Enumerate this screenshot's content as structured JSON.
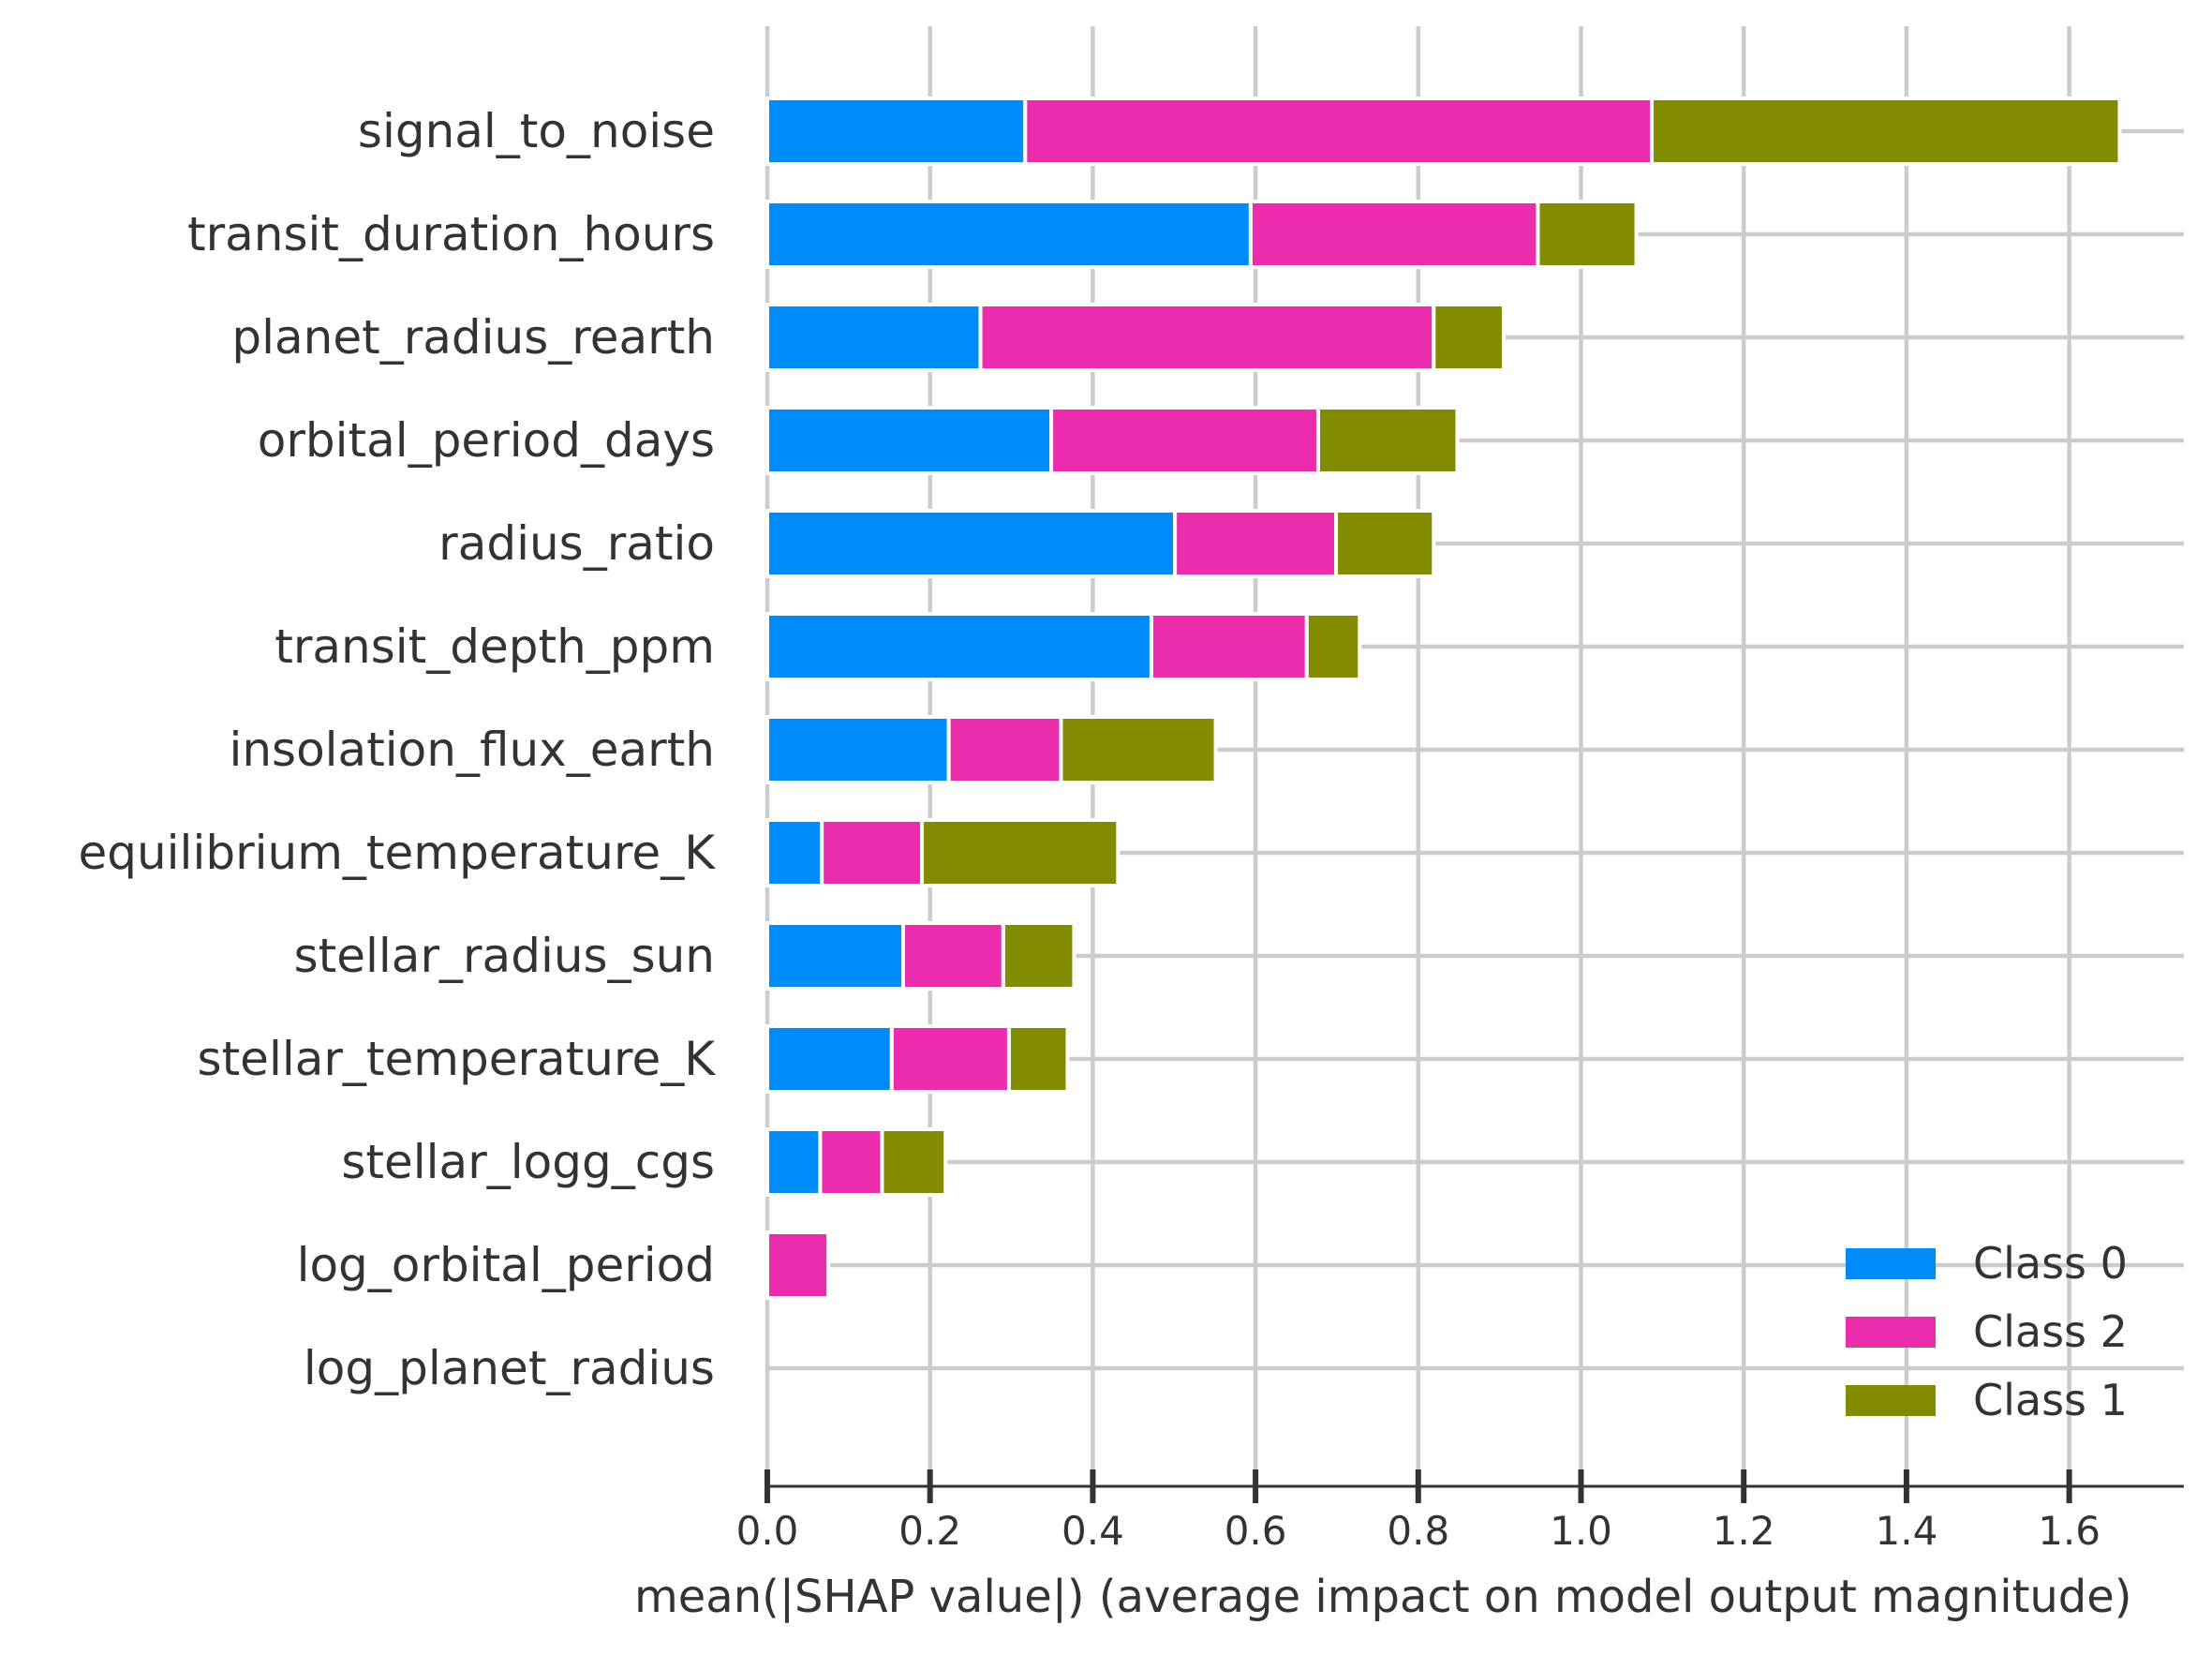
{
  "chart_data": {
    "type": "bar",
    "orientation": "horizontal",
    "stacked": true,
    "title": "",
    "xlabel": "mean(|SHAP value|) (average impact on model output magnitude)",
    "ylabel": "",
    "xlim": [
      0,
      1.75
    ],
    "xticks": [
      "0.0",
      "0.2",
      "0.4",
      "0.6",
      "0.8",
      "1.0",
      "1.2",
      "1.4",
      "1.6"
    ],
    "grid": true,
    "legend_position": "bottom-right",
    "categories": [
      "signal_to_noise",
      "transit_duration_hours",
      "planet_radius_rearth",
      "orbital_period_days",
      "radius_ratio",
      "transit_depth_ppm",
      "insolation_flux_earth",
      "equilibrium_temperature_K",
      "stellar_radius_sun",
      "stellar_temperature_K",
      "stellar_logg_cgs",
      "log_orbital_period",
      "log_planet_radius"
    ],
    "series": [
      {
        "name": "Class 0",
        "color": "#008bfb",
        "values": [
          0.317,
          0.594,
          0.262,
          0.349,
          0.501,
          0.472,
          0.223,
          0.067,
          0.167,
          0.153,
          0.065,
          0.0,
          0.0
        ]
      },
      {
        "name": "Class 2",
        "color": "#eb2cac",
        "values": [
          0.77,
          0.353,
          0.557,
          0.328,
          0.198,
          0.191,
          0.138,
          0.123,
          0.123,
          0.144,
          0.076,
          0.075,
          0.0
        ]
      },
      {
        "name": "Class 1",
        "color": "#838b00",
        "values": [
          0.575,
          0.121,
          0.086,
          0.171,
          0.12,
          0.065,
          0.19,
          0.241,
          0.087,
          0.072,
          0.078,
          0.0,
          0.0
        ]
      }
    ]
  },
  "colors": {
    "grid": "#cccccc",
    "axis": "#333333",
    "text": "#333333"
  }
}
